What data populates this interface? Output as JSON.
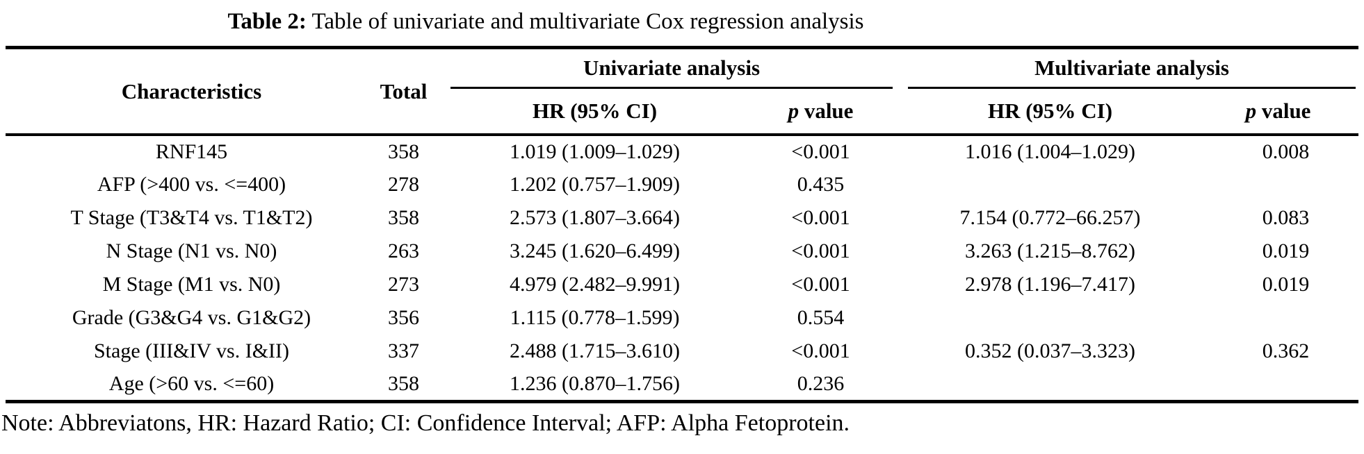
{
  "caption": {
    "label": "Table 2:",
    "text": " Table of univariate and multivariate Cox regression analysis"
  },
  "table": {
    "headers": {
      "characteristics": "Characteristics",
      "total": "Total",
      "univariate_group": "Univariate analysis",
      "multivariate_group": "Multivariate analysis",
      "uni_hr": "HR (95% CI)",
      "multi_hr": "HR (95% CI)",
      "p_italic": "p",
      "p_rest": " value"
    },
    "rows": [
      {
        "characteristic": "RNF145",
        "total": "358",
        "uni_hr": "1.019 (1.009–1.029)",
        "uni_p": "<0.001",
        "multi_hr": "1.016 (1.004–1.029)",
        "multi_p": "0.008"
      },
      {
        "characteristic": "AFP (>400 vs. <=400)",
        "total": "278",
        "uni_hr": "1.202 (0.757–1.909)",
        "uni_p": "0.435",
        "multi_hr": "",
        "multi_p": ""
      },
      {
        "characteristic": "T Stage (T3&T4 vs. T1&T2)",
        "total": "358",
        "uni_hr": "2.573 (1.807–3.664)",
        "uni_p": "<0.001",
        "multi_hr": "7.154 (0.772–66.257)",
        "multi_p": "0.083"
      },
      {
        "characteristic": "N Stage (N1 vs. N0)",
        "total": "263",
        "uni_hr": "3.245 (1.620–6.499)",
        "uni_p": "<0.001",
        "multi_hr": "3.263 (1.215–8.762)",
        "multi_p": "0.019"
      },
      {
        "characteristic": "M Stage (M1 vs. N0)",
        "total": "273",
        "uni_hr": "4.979 (2.482–9.991)",
        "uni_p": "<0.001",
        "multi_hr": "2.978 (1.196–7.417)",
        "multi_p": "0.019"
      },
      {
        "characteristic": "Grade (G3&G4 vs. G1&G2)",
        "total": "356",
        "uni_hr": "1.115 (0.778–1.599)",
        "uni_p": "0.554",
        "multi_hr": "",
        "multi_p": ""
      },
      {
        "characteristic": "Stage (III&IV vs. I&II)",
        "total": "337",
        "uni_hr": "2.488 (1.715–3.610)",
        "uni_p": "<0.001",
        "multi_hr": "0.352 (0.037–3.323)",
        "multi_p": "0.362"
      },
      {
        "characteristic": "Age (>60 vs. <=60)",
        "total": "358",
        "uni_hr": "1.236 (0.870–1.756)",
        "uni_p": "0.236",
        "multi_hr": "",
        "multi_p": ""
      }
    ]
  },
  "note": "Note: Abbreviatons, HR: Hazard Ratio; CI: Confidence Interval; AFP: Alpha Fetoprotein."
}
